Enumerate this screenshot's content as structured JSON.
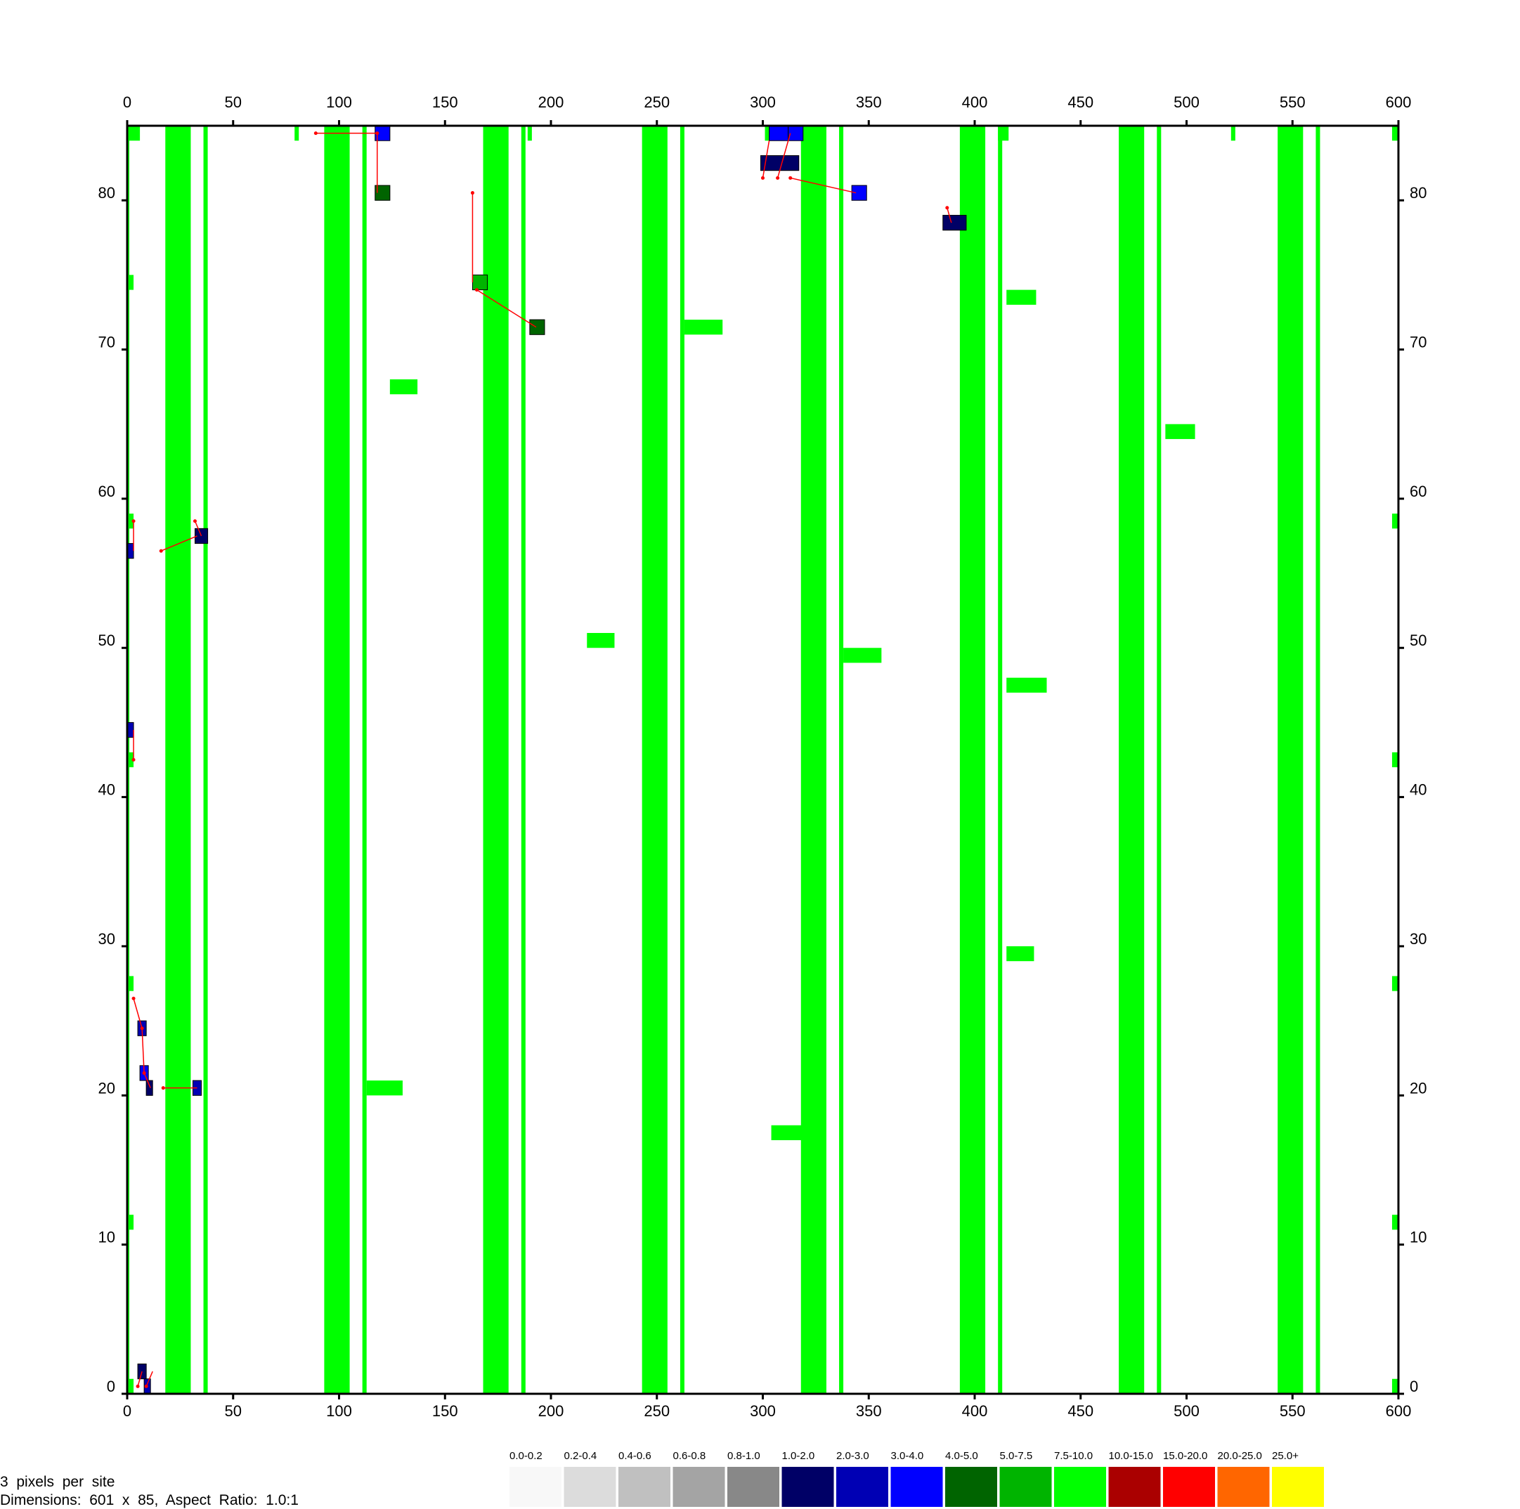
{
  "chart_data": {
    "type": "heatmap",
    "title": "",
    "xlabel": "",
    "ylabel": "",
    "xlim": [
      0,
      600
    ],
    "ylim": [
      0,
      85
    ],
    "x_ticks": [
      "0",
      "50",
      "100",
      "150",
      "200",
      "250",
      "300",
      "350",
      "400",
      "450",
      "500",
      "550",
      "600"
    ],
    "y_ticks": [
      "0",
      "10",
      "20",
      "30",
      "40",
      "50",
      "60",
      "70",
      "80"
    ],
    "grid": false,
    "legend_position": "bottom-right",
    "legend": [
      {
        "label": "0.0-0.2",
        "color": "#f8f8f8"
      },
      {
        "label": "0.2-0.4",
        "color": "#dcdcdc"
      },
      {
        "label": "0.4-0.6",
        "color": "#c0c0c0"
      },
      {
        "label": "0.6-0.8",
        "color": "#a4a4a4"
      },
      {
        "label": "0.8-1.0",
        "color": "#888888"
      },
      {
        "label": "1.0-2.0",
        "color": "#000066"
      },
      {
        "label": "2.0-3.0",
        "color": "#0000b4"
      },
      {
        "label": "3.0-4.0",
        "color": "#0000ff"
      },
      {
        "label": "4.0-5.0",
        "color": "#006400"
      },
      {
        "label": "5.0-7.5",
        "color": "#00b400"
      },
      {
        "label": "7.5-10.0",
        "color": "#00ff00"
      },
      {
        "label": "10.0-15.0",
        "color": "#aa0000"
      },
      {
        "label": "15.0-20.0",
        "color": "#ff0000"
      },
      {
        "label": "20.0-25.0",
        "color": "#ff6600"
      },
      {
        "label": "25.0+",
        "color": "#ffff00"
      }
    ],
    "vertical_bands": [
      {
        "x0": -2,
        "x1": 1,
        "color": "#00ff00"
      },
      {
        "x0": 18,
        "x1": 30,
        "color": "#00ff00"
      },
      {
        "x0": 36,
        "x1": 38,
        "color": "#00ff00"
      },
      {
        "x0": 93,
        "x1": 105,
        "color": "#00ff00"
      },
      {
        "x0": 111,
        "x1": 113,
        "color": "#00ff00"
      },
      {
        "x0": 168,
        "x1": 180,
        "color": "#00ff00"
      },
      {
        "x0": 186,
        "x1": 188,
        "color": "#00ff00"
      },
      {
        "x0": 243,
        "x1": 255,
        "color": "#00ff00"
      },
      {
        "x0": 261,
        "x1": 263,
        "color": "#00ff00"
      },
      {
        "x0": 318,
        "x1": 330,
        "color": "#00ff00"
      },
      {
        "x0": 336,
        "x1": 338,
        "color": "#00ff00"
      },
      {
        "x0": 393,
        "x1": 405,
        "color": "#00ff00"
      },
      {
        "x0": 411,
        "x1": 413,
        "color": "#00ff00"
      },
      {
        "x0": 468,
        "x1": 480,
        "color": "#00ff00"
      },
      {
        "x0": 486,
        "x1": 488,
        "color": "#00ff00"
      },
      {
        "x0": 543,
        "x1": 555,
        "color": "#00ff00"
      },
      {
        "x0": 561,
        "x1": 563,
        "color": "#00ff00"
      }
    ],
    "cells": [
      {
        "x0": 0,
        "x1": 6,
        "y0": 84,
        "y1": 85,
        "color": "#00ff00"
      },
      {
        "x0": 79,
        "x1": 81,
        "y0": 84,
        "y1": 85,
        "color": "#00ff00"
      },
      {
        "x0": 117,
        "x1": 124,
        "y0": 84,
        "y1": 85,
        "color": "#0000ff"
      },
      {
        "x0": 189,
        "x1": 191,
        "y0": 84,
        "y1": 85,
        "color": "#00ff00"
      },
      {
        "x0": 301,
        "x1": 303,
        "y0": 84,
        "y1": 85,
        "color": "#00ff00"
      },
      {
        "x0": 303,
        "x1": 312,
        "y0": 84,
        "y1": 85,
        "color": "#0000ff"
      },
      {
        "x0": 312,
        "x1": 319,
        "y0": 84,
        "y1": 85,
        "color": "#0000ff"
      },
      {
        "x0": 411,
        "x1": 416,
        "y0": 84,
        "y1": 85,
        "color": "#00ff00"
      },
      {
        "x0": 521,
        "x1": 523,
        "y0": 84,
        "y1": 85,
        "color": "#00ff00"
      },
      {
        "x0": 597,
        "x1": 600,
        "y0": 84,
        "y1": 85,
        "color": "#00ff00"
      },
      {
        "x0": 299,
        "x1": 317,
        "y0": 82,
        "y1": 83,
        "color": "#000066"
      },
      {
        "x0": 117,
        "x1": 124,
        "y0": 80,
        "y1": 81,
        "color": "#006400"
      },
      {
        "x0": 342,
        "x1": 349,
        "y0": 80,
        "y1": 81,
        "color": "#0000ff"
      },
      {
        "x0": 385,
        "x1": 396,
        "y0": 78,
        "y1": 79,
        "color": "#000066"
      },
      {
        "x0": 0,
        "x1": 3,
        "y0": 74,
        "y1": 75,
        "color": "#00ff00"
      },
      {
        "x0": 163,
        "x1": 170,
        "y0": 74,
        "y1": 75,
        "color": "#00b400"
      },
      {
        "x0": 415,
        "x1": 429,
        "y0": 73,
        "y1": 74,
        "color": "#00ff00"
      },
      {
        "x0": 190,
        "x1": 197,
        "y0": 71,
        "y1": 72,
        "color": "#006400"
      },
      {
        "x0": 263,
        "x1": 281,
        "y0": 71,
        "y1": 72,
        "color": "#00ff00"
      },
      {
        "x0": 124,
        "x1": 137,
        "y0": 67,
        "y1": 68,
        "color": "#00ff00"
      },
      {
        "x0": 490,
        "x1": 504,
        "y0": 64,
        "y1": 65,
        "color": "#00ff00"
      },
      {
        "x0": 0,
        "x1": 3,
        "y0": 58,
        "y1": 59,
        "color": "#00ff00"
      },
      {
        "x0": 597,
        "x1": 600,
        "y0": 58,
        "y1": 59,
        "color": "#00ff00"
      },
      {
        "x0": 32,
        "x1": 38,
        "y0": 57,
        "y1": 58,
        "color": "#000066"
      },
      {
        "x0": 0,
        "x1": 3,
        "y0": 56,
        "y1": 57,
        "color": "#0000b4"
      },
      {
        "x0": 217,
        "x1": 230,
        "y0": 50,
        "y1": 51,
        "color": "#00ff00"
      },
      {
        "x0": 338,
        "x1": 356,
        "y0": 49,
        "y1": 50,
        "color": "#00ff00"
      },
      {
        "x0": 415,
        "x1": 434,
        "y0": 47,
        "y1": 48,
        "color": "#00ff00"
      },
      {
        "x0": 0,
        "x1": 3,
        "y0": 44,
        "y1": 45,
        "color": "#0000b4"
      },
      {
        "x0": 0,
        "x1": 3,
        "y0": 42,
        "y1": 43,
        "color": "#00ff00"
      },
      {
        "x0": 597,
        "x1": 600,
        "y0": 42,
        "y1": 43,
        "color": "#00ff00"
      },
      {
        "x0": 415,
        "x1": 428,
        "y0": 29,
        "y1": 30,
        "color": "#00ff00"
      },
      {
        "x0": 0,
        "x1": 3,
        "y0": 27,
        "y1": 28,
        "color": "#00ff00"
      },
      {
        "x0": 597,
        "x1": 600,
        "y0": 27,
        "y1": 28,
        "color": "#00ff00"
      },
      {
        "x0": 5,
        "x1": 9,
        "y0": 24,
        "y1": 25,
        "color": "#0000b4"
      },
      {
        "x0": 6,
        "x1": 10,
        "y0": 21,
        "y1": 22,
        "color": "#0000ff"
      },
      {
        "x0": 9,
        "x1": 12,
        "y0": 20,
        "y1": 21,
        "color": "#000066"
      },
      {
        "x0": 31,
        "x1": 35,
        "y0": 20,
        "y1": 21,
        "color": "#0000b4"
      },
      {
        "x0": 113,
        "x1": 130,
        "y0": 20,
        "y1": 21,
        "color": "#00ff00"
      },
      {
        "x0": 304,
        "x1": 321,
        "y0": 17,
        "y1": 18,
        "color": "#00ff00"
      },
      {
        "x0": 0,
        "x1": 3,
        "y0": 11,
        "y1": 12,
        "color": "#00ff00"
      },
      {
        "x0": 597,
        "x1": 600,
        "y0": 11,
        "y1": 12,
        "color": "#00ff00"
      },
      {
        "x0": 5,
        "x1": 9,
        "y0": 1,
        "y1": 2,
        "color": "#000066"
      },
      {
        "x0": 0,
        "x1": 3,
        "y0": 0,
        "y1": 1,
        "color": "#00ff00"
      },
      {
        "x0": 8,
        "x1": 11,
        "y0": 0,
        "y1": 1,
        "color": "#0000b4"
      },
      {
        "x0": 597,
        "x1": 600,
        "y0": 0,
        "y1": 1,
        "color": "#00ff00"
      }
    ],
    "links": [
      [
        89,
        84.5,
        118,
        84.5
      ],
      [
        118,
        84.5,
        118,
        80.5
      ],
      [
        163,
        80.5,
        163,
        74.5
      ],
      [
        165,
        74,
        193,
        71.5
      ],
      [
        300,
        81.5,
        303,
        84
      ],
      [
        307,
        81.5,
        313,
        84.5
      ],
      [
        313,
        81.5,
        344,
        80.5
      ],
      [
        387,
        79.5,
        389,
        78.5
      ],
      [
        3,
        58.5,
        3,
        56.5
      ],
      [
        16,
        56.5,
        33,
        57.5
      ],
      [
        32,
        58.5,
        35,
        57.5
      ],
      [
        3,
        42.5,
        3,
        44.5
      ],
      [
        3,
        26.5,
        7,
        24.5
      ],
      [
        7,
        24.5,
        8,
        21.5
      ],
      [
        8,
        21.5,
        11,
        20.5
      ],
      [
        17,
        20.5,
        33,
        20.5
      ],
      [
        5,
        0.5,
        7,
        1.5
      ],
      [
        9,
        0.5,
        12,
        1.5
      ]
    ]
  },
  "info": {
    "line1": "3  pixels  per  site",
    "line2": "Dimensions:  601  x  85,  Aspect  Ratio:  1.0:1"
  }
}
